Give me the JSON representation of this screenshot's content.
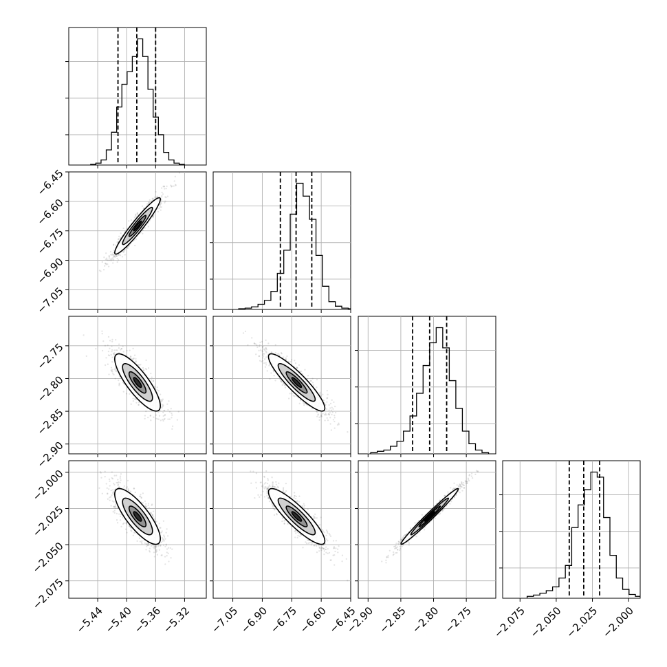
{
  "chart_data": {
    "type": "corner",
    "parameters": [
      {
        "index": 0,
        "center": -5.385,
        "sigma": 0.018,
        "range": [
          -5.48,
          -5.29
        ],
        "ticks": [
          -5.44,
          -5.4,
          -5.36,
          -5.32
        ],
        "tick_labels": [
          "−5.44",
          "−5.40",
          "−5.36",
          "−5.32"
        ],
        "quantiles": [
          -5.412,
          -5.386,
          -5.36
        ],
        "hist": [
          0.5,
          1.5,
          4,
          12,
          26,
          46,
          64,
          74,
          86,
          100,
          86,
          60,
          38,
          24,
          10,
          4,
          1.5,
          0.5
        ]
      },
      {
        "index": 1,
        "center": -6.725,
        "sigma": 0.082,
        "range": [
          -7.15,
          -6.45
        ],
        "ticks": [
          -7.05,
          -6.9,
          -6.75,
          -6.6,
          -6.45
        ],
        "tick_labels": [
          "−7.05",
          "−6.90",
          "−6.75",
          "−6.60",
          "−6.45"
        ],
        "quantiles": [
          -6.808,
          -6.728,
          -6.648
        ],
        "hist": [
          0.5,
          1,
          2,
          4,
          7,
          14,
          28,
          46,
          74,
          98,
          88,
          70,
          42,
          18,
          6,
          2.5,
          1,
          0.5
        ]
      },
      {
        "index": 2,
        "center": -2.806,
        "sigma": 0.025,
        "range": [
          -2.915,
          -2.705
        ],
        "ticks": [
          -2.9,
          -2.85,
          -2.8,
          -2.75
        ],
        "tick_labels": [
          "−2.90",
          "−2.85",
          "−2.80",
          "−2.75"
        ],
        "quantiles": [
          -2.832,
          -2.806,
          -2.78
        ],
        "hist": [
          1,
          2,
          3,
          6,
          10,
          18,
          30,
          48,
          70,
          88,
          100,
          84,
          58,
          36,
          18,
          8,
          3,
          1
        ]
      },
      {
        "index": 3,
        "center": -2.0305,
        "sigma": 0.011,
        "range": [
          -2.087,
          -1.992
        ],
        "ticks": [
          -2.075,
          -2.05,
          -2.025,
          -2.0
        ],
        "tick_labels": [
          "−2.075",
          "−2.050",
          "−2.025",
          "−2.000"
        ],
        "quantiles": [
          -2.041,
          -2.031,
          -2.02
        ],
        "hist": [
          1.5,
          2.5,
          4,
          6,
          9,
          16,
          26,
          56,
          74,
          86,
          100,
          96,
          64,
          34,
          16,
          7,
          3,
          1.5
        ]
      }
    ],
    "correlations": [
      [
        1.0,
        0.95,
        -0.82,
        -0.8
      ],
      [
        0.95,
        1.0,
        -0.9,
        -0.88
      ],
      [
        -0.82,
        -0.9,
        1.0,
        0.985
      ],
      [
        -0.8,
        -0.88,
        0.985,
        1.0
      ]
    ],
    "grid": true
  }
}
